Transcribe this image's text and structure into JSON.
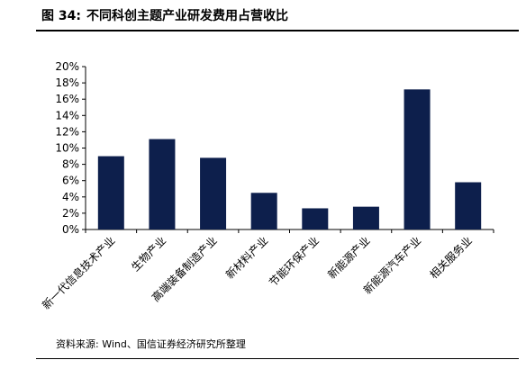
{
  "figure": {
    "label": "图 34:",
    "title": "不同科创主题产业研发费用占营收比"
  },
  "source": "资料来源: Wind、国信证券经济研究所整理",
  "chart_data": {
    "type": "bar",
    "title": "",
    "xlabel": "",
    "ylabel": "",
    "categories": [
      "新一代信息技术产业",
      "生物产业",
      "高端装备制造产业",
      "新材料产业",
      "节能环保产业",
      "新能源产业",
      "新能源汽车产业",
      "相关服务业"
    ],
    "values": [
      9.0,
      11.1,
      8.8,
      4.5,
      2.6,
      2.8,
      17.2,
      5.8
    ],
    "value_unit": "%",
    "ylim": [
      0,
      20
    ],
    "yticks": [
      "0%",
      "2%",
      "4%",
      "6%",
      "8%",
      "10%",
      "12%",
      "14%",
      "16%",
      "18%",
      "20%"
    ],
    "grid": false,
    "legend": "none",
    "bar_color": "#0d1f4c"
  }
}
